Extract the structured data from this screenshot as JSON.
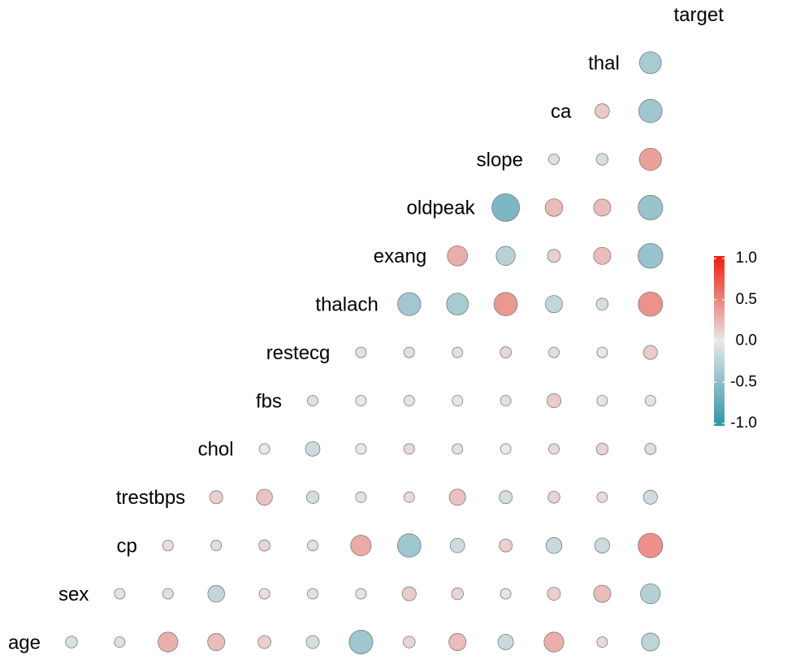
{
  "chart_data": {
    "type": "heatmap",
    "style": "correlation-bubble-triangle",
    "title": "",
    "variables": [
      "age",
      "sex",
      "cp",
      "trestbps",
      "chol",
      "fbs",
      "restecg",
      "thalach",
      "exang",
      "oldpeak",
      "slope",
      "ca",
      "thal",
      "target"
    ],
    "correlations": [
      {
        "row": "sex",
        "col": "age",
        "value": -0.1
      },
      {
        "row": "cp",
        "col": "age",
        "value": -0.07
      },
      {
        "row": "cp",
        "col": "sex",
        "value": -0.05
      },
      {
        "row": "trestbps",
        "col": "age",
        "value": 0.28
      },
      {
        "row": "trestbps",
        "col": "sex",
        "value": -0.06
      },
      {
        "row": "trestbps",
        "col": "cp",
        "value": 0.05
      },
      {
        "row": "chol",
        "col": "age",
        "value": 0.21
      },
      {
        "row": "chol",
        "col": "sex",
        "value": -0.2
      },
      {
        "row": "chol",
        "col": "cp",
        "value": -0.08
      },
      {
        "row": "chol",
        "col": "trestbps",
        "value": 0.12
      },
      {
        "row": "fbs",
        "col": "age",
        "value": 0.12
      },
      {
        "row": "fbs",
        "col": "sex",
        "value": 0.05
      },
      {
        "row": "fbs",
        "col": "cp",
        "value": 0.09
      },
      {
        "row": "fbs",
        "col": "trestbps",
        "value": 0.18
      },
      {
        "row": "fbs",
        "col": "chol",
        "value": 0.01
      },
      {
        "row": "restecg",
        "col": "age",
        "value": -0.12
      },
      {
        "row": "restecg",
        "col": "sex",
        "value": -0.06
      },
      {
        "row": "restecg",
        "col": "cp",
        "value": 0.04
      },
      {
        "row": "restecg",
        "col": "trestbps",
        "value": -0.11
      },
      {
        "row": "restecg",
        "col": "chol",
        "value": -0.15
      },
      {
        "row": "restecg",
        "col": "fbs",
        "value": -0.08
      },
      {
        "row": "thalach",
        "col": "age",
        "value": -0.4
      },
      {
        "row": "thalach",
        "col": "sex",
        "value": -0.04
      },
      {
        "row": "thalach",
        "col": "cp",
        "value": 0.3
      },
      {
        "row": "thalach",
        "col": "trestbps",
        "value": -0.05
      },
      {
        "row": "thalach",
        "col": "chol",
        "value": -0.01
      },
      {
        "row": "thalach",
        "col": "fbs",
        "value": -0.01
      },
      {
        "row": "thalach",
        "col": "restecg",
        "value": 0.04
      },
      {
        "row": "exang",
        "col": "age",
        "value": 0.1
      },
      {
        "row": "exang",
        "col": "sex",
        "value": 0.14
      },
      {
        "row": "exang",
        "col": "cp",
        "value": -0.39
      },
      {
        "row": "exang",
        "col": "trestbps",
        "value": 0.07
      },
      {
        "row": "exang",
        "col": "chol",
        "value": 0.07
      },
      {
        "row": "exang",
        "col": "fbs",
        "value": 0.03
      },
      {
        "row": "exang",
        "col": "restecg",
        "value": -0.07
      },
      {
        "row": "exang",
        "col": "thalach",
        "value": -0.38
      },
      {
        "row": "oldpeak",
        "col": "age",
        "value": 0.21
      },
      {
        "row": "oldpeak",
        "col": "sex",
        "value": 0.1
      },
      {
        "row": "oldpeak",
        "col": "cp",
        "value": -0.15
      },
      {
        "row": "oldpeak",
        "col": "trestbps",
        "value": 0.19
      },
      {
        "row": "oldpeak",
        "col": "chol",
        "value": 0.05
      },
      {
        "row": "oldpeak",
        "col": "fbs",
        "value": 0.01
      },
      {
        "row": "oldpeak",
        "col": "restecg",
        "value": -0.06
      },
      {
        "row": "oldpeak",
        "col": "thalach",
        "value": -0.34
      },
      {
        "row": "oldpeak",
        "col": "exang",
        "value": 0.29
      },
      {
        "row": "slope",
        "col": "age",
        "value": -0.17
      },
      {
        "row": "slope",
        "col": "sex",
        "value": -0.03
      },
      {
        "row": "slope",
        "col": "cp",
        "value": 0.12
      },
      {
        "row": "slope",
        "col": "trestbps",
        "value": -0.12
      },
      {
        "row": "slope",
        "col": "chol",
        "value": -0.004
      },
      {
        "row": "slope",
        "col": "fbs",
        "value": -0.06
      },
      {
        "row": "slope",
        "col": "restecg",
        "value": 0.09
      },
      {
        "row": "slope",
        "col": "thalach",
        "value": 0.39
      },
      {
        "row": "slope",
        "col": "exang",
        "value": -0.26
      },
      {
        "row": "slope",
        "col": "oldpeak",
        "value": -0.58
      },
      {
        "row": "ca",
        "col": "age",
        "value": 0.28
      },
      {
        "row": "ca",
        "col": "sex",
        "value": 0.12
      },
      {
        "row": "ca",
        "col": "cp",
        "value": -0.18
      },
      {
        "row": "ca",
        "col": "trestbps",
        "value": 0.1
      },
      {
        "row": "ca",
        "col": "chol",
        "value": 0.07
      },
      {
        "row": "ca",
        "col": "fbs",
        "value": 0.14
      },
      {
        "row": "ca",
        "col": "restecg",
        "value": -0.07
      },
      {
        "row": "ca",
        "col": "thalach",
        "value": -0.21
      },
      {
        "row": "ca",
        "col": "exang",
        "value": 0.12
      },
      {
        "row": "ca",
        "col": "oldpeak",
        "value": 0.22
      },
      {
        "row": "ca",
        "col": "slope",
        "value": -0.08
      },
      {
        "row": "thal",
        "col": "age",
        "value": 0.07
      },
      {
        "row": "thal",
        "col": "sex",
        "value": 0.21
      },
      {
        "row": "thal",
        "col": "cp",
        "value": -0.16
      },
      {
        "row": "thal",
        "col": "trestbps",
        "value": 0.06
      },
      {
        "row": "thal",
        "col": "chol",
        "value": 0.1
      },
      {
        "row": "thal",
        "col": "fbs",
        "value": -0.03
      },
      {
        "row": "thal",
        "col": "restecg",
        "value": -0.01
      },
      {
        "row": "thal",
        "col": "thalach",
        "value": -0.1
      },
      {
        "row": "thal",
        "col": "exang",
        "value": 0.21
      },
      {
        "row": "thal",
        "col": "oldpeak",
        "value": 0.21
      },
      {
        "row": "thal",
        "col": "slope",
        "value": -0.1
      },
      {
        "row": "thal",
        "col": "ca",
        "value": 0.15
      },
      {
        "row": "target",
        "col": "age",
        "value": -0.23
      },
      {
        "row": "target",
        "col": "sex",
        "value": -0.28
      },
      {
        "row": "target",
        "col": "cp",
        "value": 0.43
      },
      {
        "row": "target",
        "col": "trestbps",
        "value": -0.14
      },
      {
        "row": "target",
        "col": "chol",
        "value": -0.09
      },
      {
        "row": "target",
        "col": "fbs",
        "value": -0.03
      },
      {
        "row": "target",
        "col": "restecg",
        "value": 0.14
      },
      {
        "row": "target",
        "col": "thalach",
        "value": 0.42
      },
      {
        "row": "target",
        "col": "exang",
        "value": -0.44
      },
      {
        "row": "target",
        "col": "oldpeak",
        "value": -0.43
      },
      {
        "row": "target",
        "col": "slope",
        "value": 0.35
      },
      {
        "row": "target",
        "col": "ca",
        "value": -0.39
      },
      {
        "row": "target",
        "col": "thal",
        "value": -0.34
      }
    ],
    "color_scale": {
      "low": "#2d94a8",
      "mid": "#e8e8e8",
      "high": "#f21b0a",
      "limits": [
        -1,
        1
      ]
    },
    "legend": {
      "position": "right",
      "ticks": [
        "1.0",
        "0.5",
        "0.0",
        "-0.5",
        "-1.0"
      ],
      "tick_values": [
        1.0,
        0.5,
        0.0,
        -0.5,
        -1.0
      ]
    }
  }
}
